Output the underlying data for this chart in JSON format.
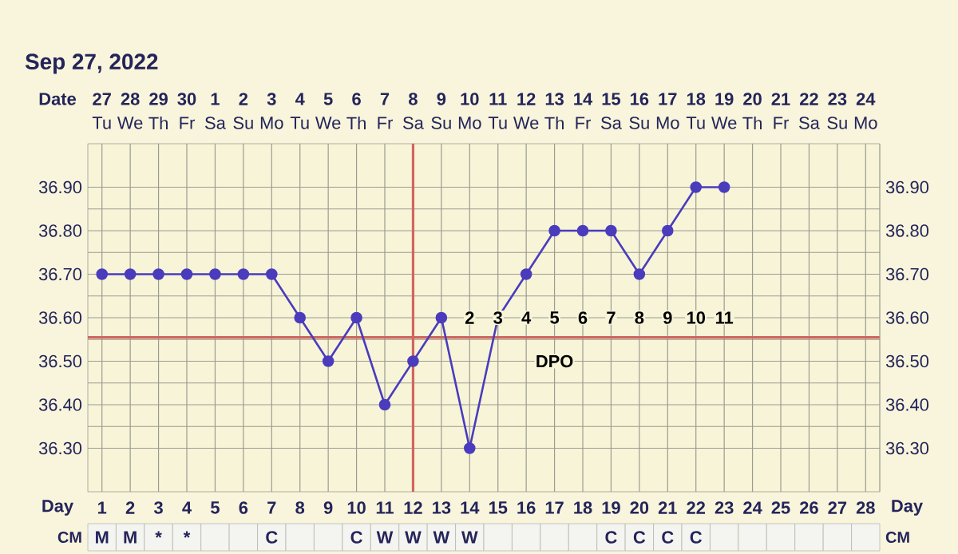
{
  "chart_data": [
    {
      "type": "other",
      "title": "Sep 27, 2022",
      "annotations": [
        "Tu",
        "We",
        "Th",
        "Fr",
        "Sa",
        "Su",
        "Mo",
        "Tu",
        "We",
        "Th",
        "Fr",
        "Sa",
        "Su",
        "Mo",
        "Tu",
        "We",
        "Th",
        "Fr",
        "Sa",
        "Su",
        "Mo",
        "Tu",
        "We",
        "Th",
        "Fr",
        "Sa",
        "Su",
        "Mo"
      ]
    },
    {
      "type": "line",
      "xlabel": "Date",
      "categories": [
        "27",
        "28",
        "29",
        "30",
        "1",
        "2",
        "3",
        "4",
        "5",
        "6",
        "7",
        "8",
        "9",
        "10",
        "11",
        "12",
        "13",
        "14",
        "15",
        "16",
        "17",
        "18",
        "19",
        "20",
        "21",
        "22",
        "23",
        "24"
      ],
      "values": [
        36.7,
        36.7,
        36.7,
        36.7,
        36.7,
        36.7,
        36.7,
        36.6,
        36.5,
        36.6,
        36.4,
        36.5,
        36.6,
        36.3,
        36.6,
        36.7,
        36.8,
        36.8,
        36.8,
        36.7,
        36.8,
        36.9,
        36.9,
        null,
        null,
        null,
        null,
        null
      ],
      "color": "#4a3cbc",
      "marker": "circle",
      "line_style": "solid",
      "grid": true,
      "ylim": [
        36.2,
        37.0
      ],
      "yticks": [
        {
          "value": 36.3,
          "label": "36.30"
        },
        {
          "value": 36.4,
          "label": "36.40"
        },
        {
          "value": 36.5,
          "label": "36.50"
        },
        {
          "value": 36.6,
          "label": "36.60"
        },
        {
          "value": 36.7,
          "label": "36.70"
        },
        {
          "value": 36.8,
          "label": "36.80"
        },
        {
          "value": 36.9,
          "label": "36.90"
        }
      ],
      "y2lim": [
        36.2,
        37.0
      ],
      "y2ticks": [
        {
          "value": 36.3,
          "label": "36.30"
        },
        {
          "value": 36.4,
          "label": "36.40"
        },
        {
          "value": 36.5,
          "label": "36.50"
        },
        {
          "value": 36.6,
          "label": "36.60"
        },
        {
          "value": 36.7,
          "label": "36.70"
        },
        {
          "value": 36.8,
          "label": "36.80"
        },
        {
          "value": 36.9,
          "label": "36.90"
        }
      ],
      "ref_lines": [
        {
          "axis": "y",
          "value": 36.555,
          "color": "#d0665e"
        },
        {
          "axis": "x",
          "value": "8",
          "color": "#d0665e"
        }
      ],
      "annotations": [
        {
          "text": "2",
          "x": "10",
          "y": 36.6
        },
        {
          "text": "3",
          "x": "11",
          "y": 36.6
        },
        {
          "text": "4",
          "x": "12",
          "y": 36.6
        },
        {
          "text": "5",
          "x": "13",
          "y": 36.6
        },
        {
          "text": "6",
          "x": "14",
          "y": 36.6
        },
        {
          "text": "7",
          "x": "15",
          "y": 36.6
        },
        {
          "text": "8",
          "x": "16",
          "y": 36.6
        },
        {
          "text": "9",
          "x": "17",
          "y": 36.6
        },
        {
          "text": "10",
          "x": "18",
          "y": 36.6
        },
        {
          "text": "11",
          "x": "19",
          "y": 36.6
        },
        {
          "text": "DPO",
          "x": "13",
          "y": 36.5
        }
      ]
    },
    {
      "type": "heatmap",
      "xlabel": "Day",
      "categories": [
        "1",
        "2",
        "3",
        "4",
        "5",
        "6",
        "7",
        "8",
        "9",
        "10",
        "11",
        "12",
        "13",
        "14",
        "15",
        "16",
        "17",
        "18",
        "19",
        "20",
        "21",
        "22",
        "23",
        "24",
        "25",
        "26",
        "27",
        "28"
      ],
      "y_categories": [
        "CM"
      ],
      "y2_categories": [
        "CM"
      ],
      "cells": [
        [
          null,
          null,
          null,
          null,
          null,
          null,
          null,
          null,
          null,
          null,
          null,
          null,
          null,
          null,
          null,
          null,
          null,
          null,
          null,
          null,
          null,
          null,
          null,
          null,
          null,
          null,
          null,
          null
        ]
      ],
      "cell_labels": [
        [
          "M",
          "M",
          "*",
          "*",
          null,
          null,
          "C",
          null,
          null,
          "C",
          "W",
          "W",
          "W",
          "W",
          null,
          null,
          null,
          null,
          "C",
          "C",
          "C",
          "C",
          null,
          null,
          null,
          null,
          null,
          null
        ]
      ]
    }
  ]
}
